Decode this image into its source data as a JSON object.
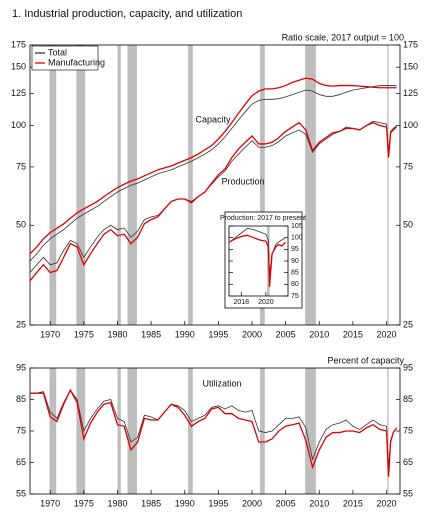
{
  "chart_data": [
    {
      "type": "line",
      "title": "1.  Industrial production, capacity, and utilization",
      "note": "Ratio scale, 2017 output = 100",
      "yscale": "log",
      "annotations": [
        "Capacity",
        "Production"
      ],
      "legend": "top-left",
      "xlim": [
        1967,
        2022
      ],
      "xticks": [
        1970,
        1975,
        1980,
        1985,
        1990,
        1995,
        2000,
        2005,
        2010,
        2015,
        2020
      ],
      "ylim": [
        25,
        175
      ],
      "yticks": [
        25,
        50,
        75,
        100,
        125,
        150,
        175
      ],
      "recessions": [
        [
          1969.9,
          1970.9
        ],
        [
          1973.9,
          1975.2
        ],
        [
          1980.0,
          1980.5
        ],
        [
          1981.5,
          1982.9
        ],
        [
          1990.5,
          1991.2
        ],
        [
          2001.2,
          2001.9
        ],
        [
          2007.9,
          2009.5
        ],
        [
          2020.1,
          2020.3
        ]
      ],
      "x": [
        1967,
        1968,
        1969,
        1970,
        1971,
        1972,
        1973,
        1974,
        1975,
        1976,
        1977,
        1978,
        1979,
        1980,
        1981,
        1982,
        1983,
        1984,
        1985,
        1986,
        1987,
        1988,
        1989,
        1990,
        1991,
        1992,
        1993,
        1994,
        1995,
        1996,
        1997,
        1998,
        1999,
        2000,
        2001,
        2002,
        2003,
        2004,
        2005,
        2006,
        2007,
        2008,
        2009,
        2010,
        2011,
        2012,
        2013,
        2014,
        2015,
        2016,
        2017,
        2018,
        2019,
        2020,
        2020.3,
        2020.6,
        2021,
        2021.5
      ],
      "series": [
        {
          "name": "Total",
          "color": "#333333",
          "values": [
            39,
            41,
            43.5,
            45.5,
            47,
            48.5,
            50.5,
            52.5,
            54,
            55.5,
            57,
            59,
            61,
            63,
            64.5,
            66,
            67,
            68.5,
            70,
            71.5,
            72.5,
            73.5,
            75,
            76.5,
            78,
            80,
            82,
            84.5,
            88,
            92.5,
            98,
            104,
            110,
            116,
            119,
            120,
            120,
            120.5,
            122,
            124,
            126,
            128,
            127,
            124,
            122.5,
            122.5,
            124,
            126,
            128,
            129,
            130,
            131,
            132,
            132,
            132,
            132,
            132,
            132
          ]
        },
        {
          "name": "Manufacturing",
          "color": "#e00000",
          "values": [
            41,
            43,
            45.5,
            47.5,
            49,
            50.5,
            52.5,
            54.5,
            56,
            57.5,
            59,
            61,
            63,
            65,
            66.5,
            68,
            69,
            70.5,
            72,
            73.5,
            74.5,
            75.5,
            77,
            78.5,
            80,
            82,
            84.5,
            87,
            91,
            96,
            102,
            109,
            116,
            123,
            127,
            129,
            129,
            130,
            132,
            135,
            137,
            139,
            138,
            134,
            132,
            131.5,
            132,
            132,
            132,
            131.5,
            131,
            130.5,
            130,
            130,
            130,
            130,
            130,
            130
          ]
        },
        {
          "color": "#333333",
          "values": [
            36,
            38,
            40,
            38,
            38.5,
            42,
            45,
            44,
            40,
            43,
            46,
            48.5,
            50,
            48.5,
            49,
            46,
            48,
            52,
            53,
            53.5,
            56,
            59,
            60,
            60,
            59,
            61,
            63,
            66.5,
            70,
            73,
            78,
            82,
            86,
            90,
            86,
            86,
            87,
            89.5,
            93,
            95,
            97,
            94,
            83,
            88,
            91,
            94,
            96,
            99,
            98,
            97,
            100,
            103,
            102,
            101,
            84,
            96,
            98,
            100
          ]
        },
        {
          "color": "#e00000",
          "values": [
            34,
            36,
            38,
            36,
            36.5,
            40,
            44,
            43,
            38,
            41,
            44,
            47,
            48.5,
            46.5,
            47,
            44,
            46,
            50.5,
            52,
            53,
            56,
            59,
            60,
            60,
            58.5,
            61,
            63,
            67,
            71,
            74,
            80,
            85,
            89,
            93,
            88,
            88,
            89,
            92,
            96,
            99,
            102,
            97,
            84,
            89,
            92,
            95,
            96,
            98,
            98,
            97,
            100,
            102,
            100,
            99,
            80,
            95,
            97,
            99
          ]
        }
      ]
    },
    {
      "type": "line",
      "title": "Production: 2017 to present",
      "xlim": [
        2017,
        2021.8
      ],
      "xticks": [
        2018,
        2020
      ],
      "ylim": [
        75,
        105
      ],
      "yticks": [
        75,
        80,
        85,
        90,
        95,
        100,
        105
      ],
      "recessions": [
        [
          2020.1,
          2020.3
        ]
      ],
      "x": [
        2017,
        2017.5,
        2018,
        2018.5,
        2019,
        2019.5,
        2020,
        2020.2,
        2020.3,
        2020.5,
        2020.8,
        2021,
        2021.3,
        2021.6
      ],
      "series": [
        {
          "color": "#333333",
          "values": [
            98,
            100,
            102,
            104,
            103.5,
            102.5,
            101.5,
            99,
            84.5,
            93,
            97,
            98,
            99,
            100
          ]
        },
        {
          "color": "#e00000",
          "values": [
            98,
            99.5,
            100.5,
            101,
            100,
            99,
            98.5,
            96,
            79,
            93,
            96,
            97,
            96.5,
            98
          ]
        }
      ]
    },
    {
      "type": "line",
      "note": "Percent of capacity",
      "annotations": [
        "Utilization"
      ],
      "xlim": [
        1967,
        2022
      ],
      "xticks": [
        1970,
        1975,
        1980,
        1985,
        1990,
        1995,
        2000,
        2005,
        2010,
        2015,
        2020
      ],
      "ylim": [
        55,
        95
      ],
      "yticks": [
        55,
        65,
        75,
        85,
        95
      ],
      "recessions": [
        [
          1969.9,
          1970.9
        ],
        [
          1973.9,
          1975.2
        ],
        [
          1980.0,
          1980.5
        ],
        [
          1981.5,
          1982.9
        ],
        [
          1990.5,
          1991.2
        ],
        [
          2001.2,
          2001.9
        ],
        [
          2007.9,
          2009.5
        ],
        [
          2020.1,
          2020.3
        ]
      ],
      "x": [
        1967,
        1968,
        1969,
        1970,
        1971,
        1972,
        1973,
        1974,
        1975,
        1976,
        1977,
        1978,
        1979,
        1980,
        1981,
        1982,
        1983,
        1984,
        1985,
        1986,
        1987,
        1988,
        1989,
        1990,
        1991,
        1992,
        1993,
        1994,
        1995,
        1996,
        1997,
        1998,
        1999,
        2000,
        2001,
        2002,
        2003,
        2004,
        2005,
        2006,
        2007,
        2008,
        2009,
        2010,
        2011,
        2012,
        2013,
        2014,
        2015,
        2016,
        2017,
        2018,
        2019,
        2020,
        2020.3,
        2020.6,
        2021,
        2021.5
      ],
      "series": [
        {
          "color": "#333333",
          "values": [
            87,
            87,
            87.5,
            81,
            79,
            84,
            88,
            85,
            75,
            79,
            82,
            84.5,
            85,
            79,
            78,
            71.5,
            73,
            80,
            79.5,
            78.5,
            81,
            83.5,
            83,
            81.5,
            78,
            79,
            80,
            82.5,
            83,
            82,
            83,
            81.5,
            81,
            81.5,
            75,
            74.5,
            75,
            77,
            79,
            79,
            79.5,
            76,
            66,
            71.5,
            75.5,
            77,
            77.5,
            78.5,
            76.5,
            75.5,
            77,
            78.5,
            77,
            76.5,
            63.5,
            72,
            74.5,
            76
          ]
        },
        {
          "color": "#e00000",
          "values": [
            87,
            87,
            87,
            79.5,
            78,
            83.5,
            88,
            84,
            72.5,
            77.5,
            81,
            83.5,
            84,
            77,
            76.5,
            69,
            71.5,
            79,
            78.5,
            78.5,
            81,
            83.5,
            82.5,
            80,
            76.5,
            78,
            79,
            82,
            82.5,
            80.5,
            80.5,
            79,
            78.5,
            78,
            71.5,
            71.5,
            72.5,
            75,
            76.5,
            77,
            77.5,
            72,
            63.5,
            69,
            73,
            74.5,
            74.5,
            75,
            75,
            74.5,
            76,
            77,
            75.5,
            75,
            60.5,
            71.5,
            74.5,
            76
          ]
        }
      ]
    }
  ]
}
